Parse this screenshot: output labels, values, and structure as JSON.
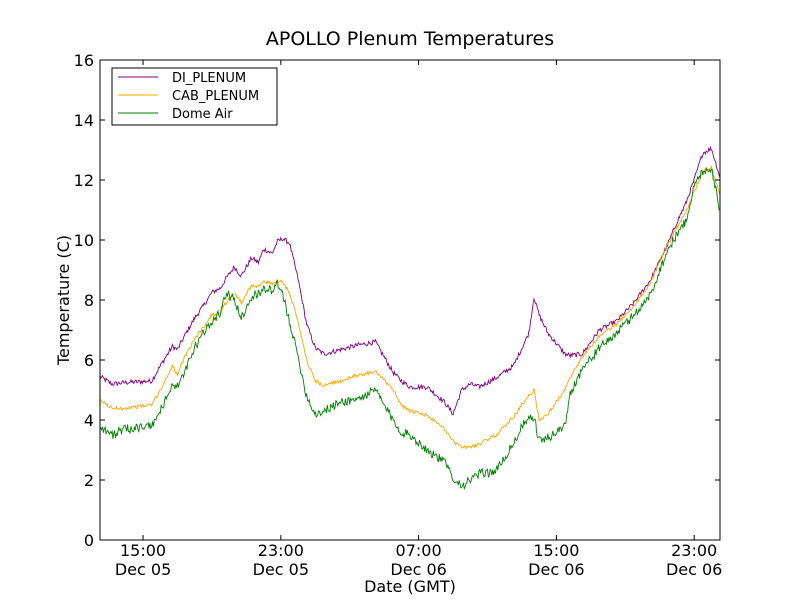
{
  "chart_data": {
    "type": "line",
    "title": "APOLLO Plenum Temperatures",
    "xlabel": "Date (GMT)",
    "ylabel": "Temperature (C)",
    "xlim": [
      0,
      36
    ],
    "ylim": [
      0,
      16
    ],
    "grid": false,
    "legend_position": "top-left",
    "x_unit": "hours since 12:30 GMT Dec 05",
    "yticks": [
      0,
      2,
      4,
      6,
      8,
      10,
      12,
      14,
      16
    ],
    "xticks": [
      {
        "x": 2.5,
        "time": "15:00",
        "date": "Dec 05"
      },
      {
        "x": 10.5,
        "time": "23:00",
        "date": "Dec 05"
      },
      {
        "x": 18.5,
        "time": "07:00",
        "date": "Dec 06"
      },
      {
        "x": 26.5,
        "time": "15:00",
        "date": "Dec 06"
      },
      {
        "x": 34.5,
        "time": "23:00",
        "date": "Dec 06"
      }
    ],
    "series": [
      {
        "name": "DI_PLENUM",
        "color": "#800080",
        "noise": 0.08,
        "x": [
          0,
          0.7,
          1.5,
          3,
          3.6,
          4.2,
          4.5,
          5,
          5.5,
          6,
          6.5,
          7,
          7.3,
          7.8,
          8.2,
          8.8,
          9.2,
          9.5,
          10,
          10.3,
          10.6,
          11,
          11.5,
          12,
          12.5,
          13,
          14,
          15,
          16,
          17,
          17.5,
          18,
          19,
          20,
          20.5,
          21,
          21.5,
          22,
          23,
          24,
          24.5,
          24.9,
          25.2,
          25.5,
          26,
          27,
          27.3,
          28,
          29,
          30,
          31,
          32,
          32.5,
          33,
          33.5,
          34,
          34.5,
          35,
          35.5,
          36
        ],
        "values": [
          5.45,
          5.2,
          5.25,
          5.3,
          5.9,
          6.45,
          6.35,
          6.9,
          7.4,
          7.8,
          8.25,
          8.4,
          8.7,
          9.1,
          8.8,
          9.4,
          9.25,
          9.7,
          9.55,
          9.95,
          10.05,
          9.9,
          8.7,
          7.2,
          6.4,
          6.2,
          6.35,
          6.5,
          6.6,
          5.6,
          5.3,
          5.1,
          5.1,
          4.6,
          4.2,
          5.0,
          5.2,
          5.1,
          5.4,
          5.8,
          6.4,
          6.9,
          8.1,
          7.5,
          6.9,
          6.2,
          6.15,
          6.2,
          7.0,
          7.3,
          7.9,
          8.7,
          9.3,
          9.9,
          10.6,
          11.2,
          12.0,
          12.9,
          13.05,
          12.1
        ]
      },
      {
        "name": "CAB_PLENUM",
        "color": "#ffa500",
        "noise": 0.06,
        "x": [
          0,
          0.7,
          1.5,
          3,
          3.6,
          4.2,
          4.5,
          5,
          5.5,
          6,
          6.5,
          7,
          7.3,
          7.8,
          8.2,
          8.8,
          9.2,
          9.5,
          10,
          10.3,
          10.6,
          11,
          11.5,
          12,
          12.5,
          13,
          14,
          15,
          16,
          17,
          17.5,
          18,
          19,
          20,
          20.5,
          21,
          21.5,
          22,
          23,
          24,
          24.5,
          24.9,
          25.2,
          25.5,
          26,
          27,
          27.3,
          28,
          29,
          30,
          31,
          32,
          32.5,
          33,
          33.5,
          34,
          34.5,
          35,
          35.5,
          36
        ],
        "values": [
          4.65,
          4.4,
          4.4,
          4.5,
          5.1,
          5.8,
          5.5,
          6.2,
          6.7,
          7.1,
          7.5,
          7.6,
          7.9,
          8.25,
          7.9,
          8.5,
          8.45,
          8.6,
          8.55,
          8.65,
          8.6,
          8.25,
          7.3,
          6.0,
          5.3,
          5.15,
          5.3,
          5.5,
          5.6,
          5.05,
          4.5,
          4.3,
          4.15,
          3.7,
          3.3,
          3.1,
          3.1,
          3.2,
          3.5,
          4.1,
          4.5,
          4.8,
          5.0,
          4.0,
          4.2,
          5.0,
          5.4,
          6.1,
          6.8,
          7.2,
          7.8,
          8.6,
          9.3,
          9.9,
          10.4,
          10.9,
          11.6,
          12.3,
          12.4,
          11.5
        ]
      },
      {
        "name": "Dome Air",
        "color": "#008000",
        "noise": 0.15,
        "x": [
          0,
          0.7,
          1.5,
          3,
          3.6,
          4.2,
          4.5,
          5,
          5.5,
          6,
          6.5,
          7,
          7.3,
          7.8,
          8.2,
          8.8,
          9.2,
          9.5,
          10,
          10.3,
          10.6,
          11,
          11.5,
          12,
          12.5,
          13,
          14,
          15,
          16,
          17,
          17.5,
          18,
          19,
          20,
          20.5,
          21,
          21.5,
          22,
          23,
          24,
          24.5,
          24.9,
          25.2,
          25.5,
          26,
          27,
          27.3,
          28,
          29,
          30,
          31,
          32,
          32.5,
          33,
          33.5,
          34,
          34.5,
          35,
          35.5,
          36
        ],
        "values": [
          3.8,
          3.5,
          3.7,
          3.8,
          4.4,
          5.2,
          5.1,
          5.7,
          6.4,
          6.9,
          7.3,
          7.6,
          8.2,
          8.0,
          7.4,
          8.1,
          8.2,
          8.4,
          8.3,
          8.5,
          8.2,
          7.3,
          6.1,
          4.8,
          4.2,
          4.3,
          4.6,
          4.7,
          5.0,
          4.0,
          3.6,
          3.5,
          3.0,
          2.6,
          2.1,
          1.8,
          2.0,
          2.2,
          2.3,
          3.2,
          3.8,
          4.0,
          4.1,
          3.3,
          3.4,
          3.8,
          4.9,
          5.7,
          6.4,
          6.9,
          7.5,
          8.2,
          9.0,
          9.7,
          10.2,
          10.6,
          11.8,
          12.3,
          12.4,
          11.0
        ]
      }
    ]
  }
}
